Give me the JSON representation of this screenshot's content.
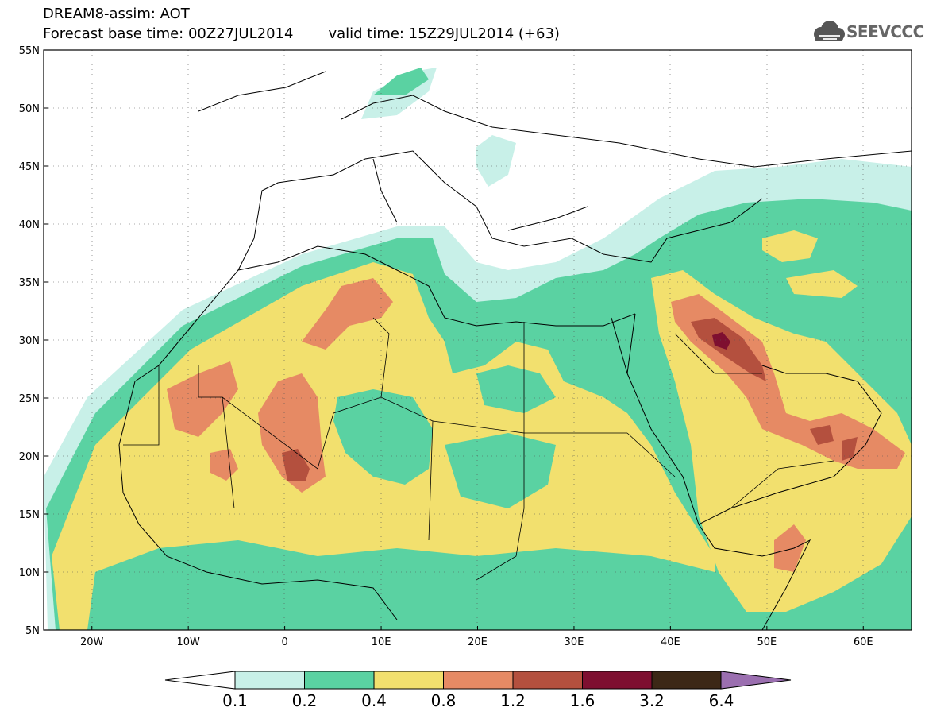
{
  "header": {
    "line1": "DREAM8-assim: AOT",
    "base": "Forecast base time: 00Z27JUL2014",
    "valid": "valid time: 15Z29JUL2014 (+63)"
  },
  "logo": {
    "text": "SEEVCCC",
    "icon": "cloud-icon"
  },
  "map": {
    "lat_range": [
      5,
      55
    ],
    "lon_range": [
      -25,
      65
    ],
    "lat_ticks": [
      "5N",
      "10N",
      "15N",
      "20N",
      "25N",
      "30N",
      "35N",
      "40N",
      "45N",
      "50N",
      "55N"
    ],
    "lon_ticks": [
      "20W",
      "10W",
      "0",
      "10E",
      "20E",
      "30E",
      "40E",
      "50E",
      "60E"
    ]
  },
  "colorbar": {
    "levels": [
      "0.1",
      "0.2",
      "0.4",
      "0.8",
      "1.2",
      "1.6",
      "3.2",
      "6.4"
    ],
    "colors": [
      "#c8f0e8",
      "#5ad2a2",
      "#f2e06e",
      "#e68a64",
      "#b4503e",
      "#7e0f30",
      "#3c2816",
      "#9b6fb0"
    ]
  }
}
